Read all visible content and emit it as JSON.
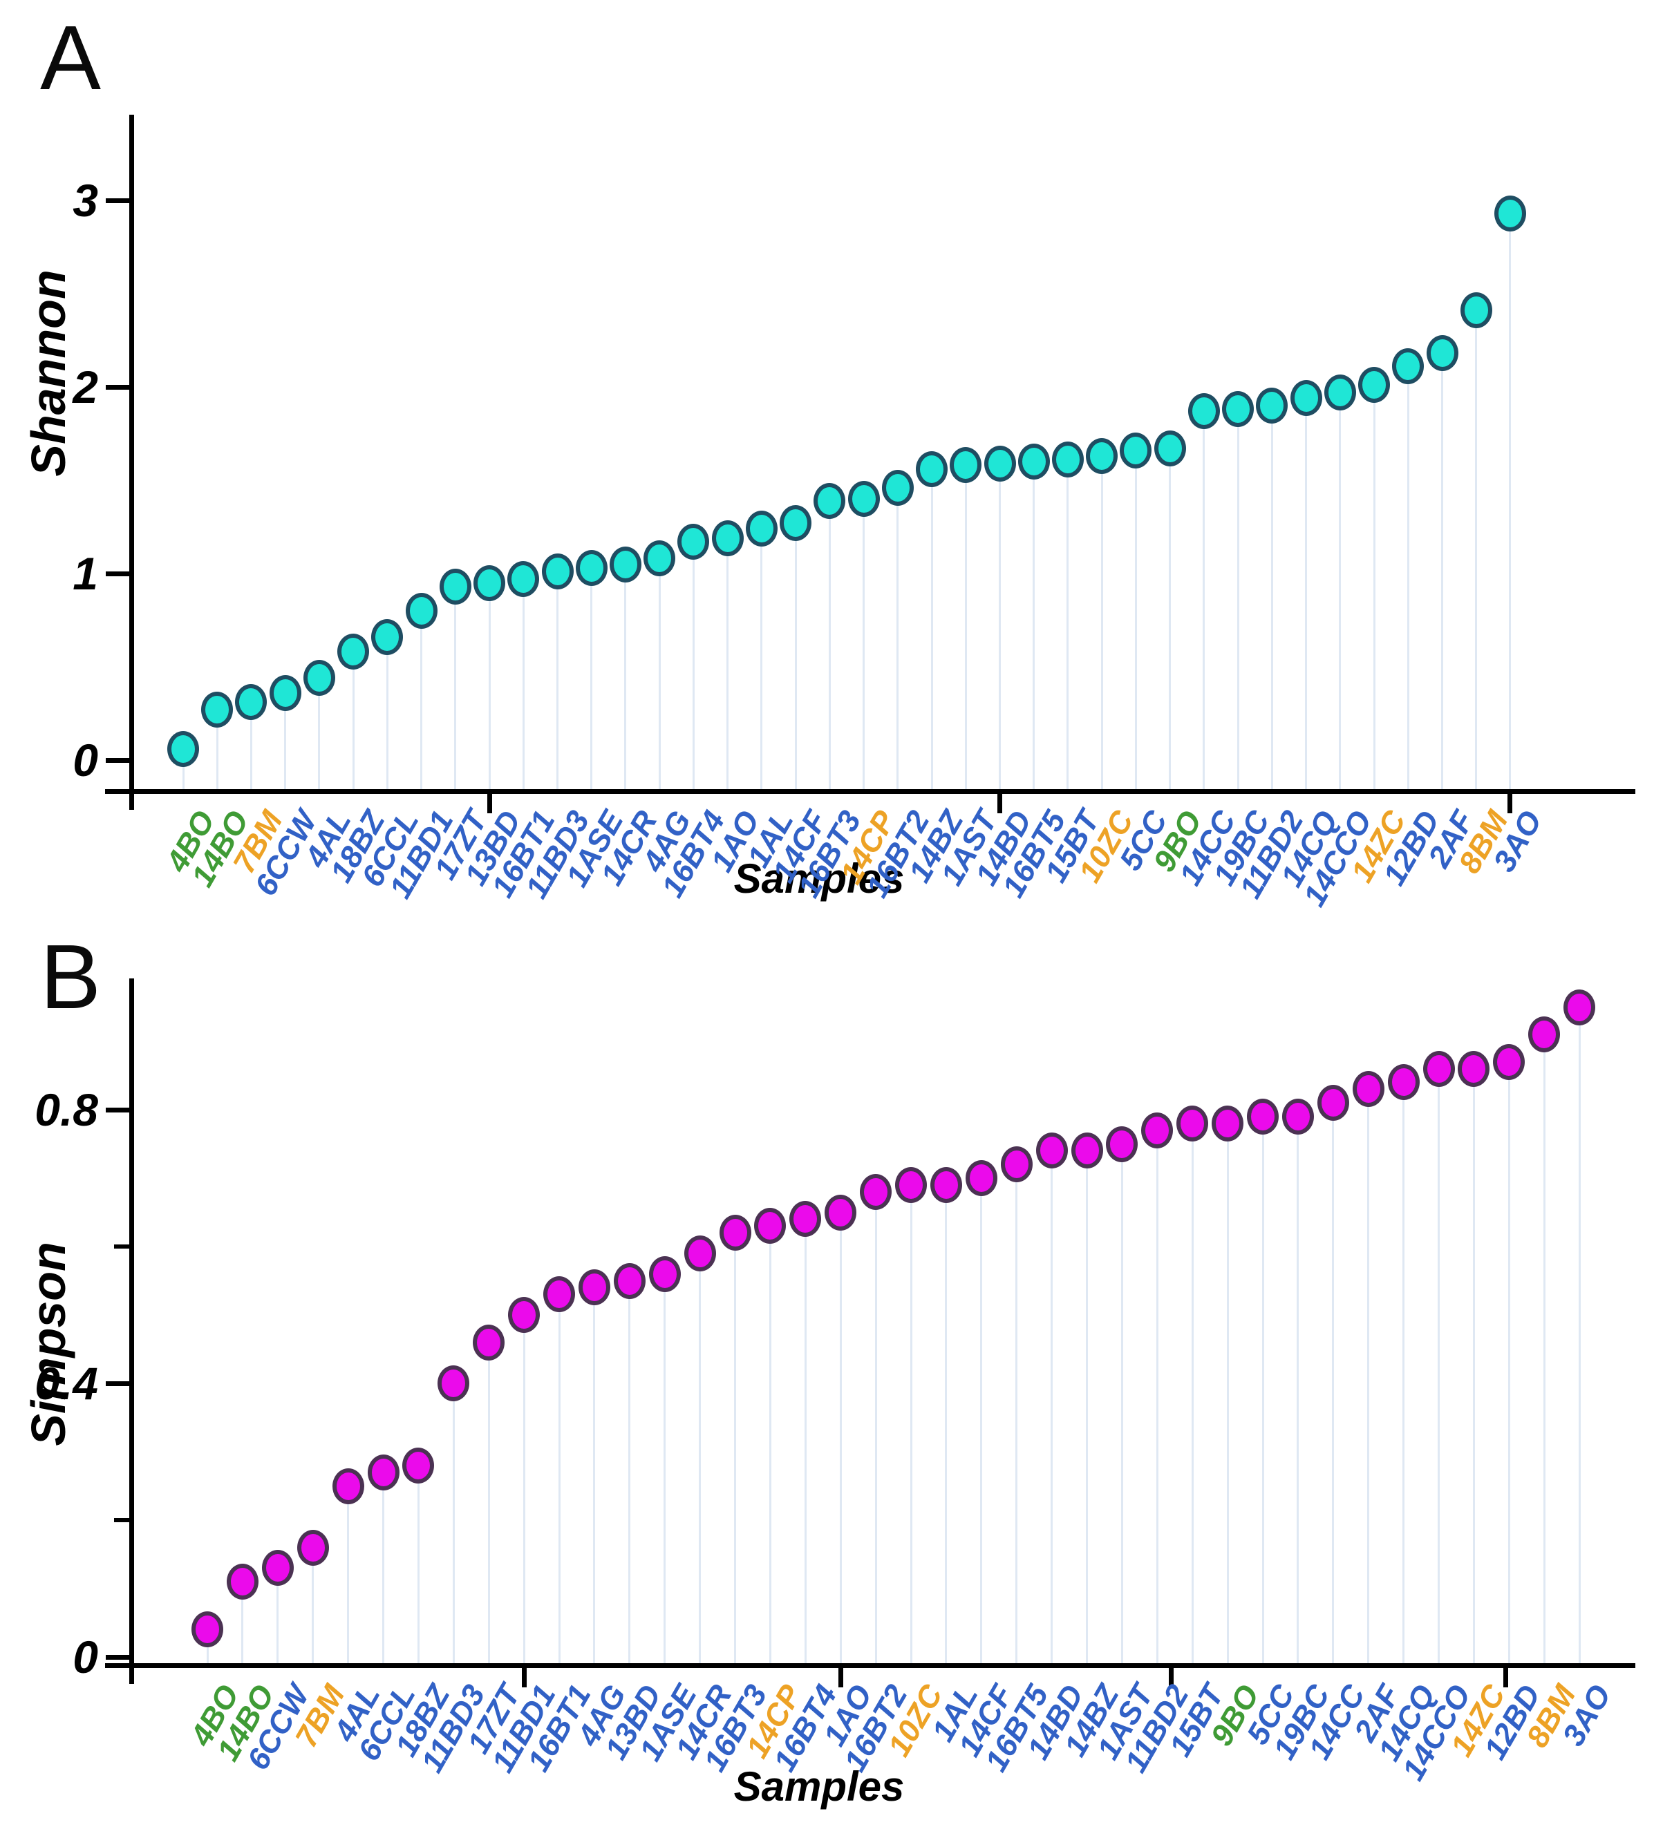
{
  "palette": {
    "label_blue": "#3161c6",
    "label_green": "#3f9b35",
    "label_orange": "#eda225",
    "axis_color": "#000000",
    "dropline_color": "#dfe8f3",
    "shannon_marker_fill": "#1fe6d6",
    "shannon_marker_stroke": "#1f4d62",
    "simpson_marker_fill": "#eb0aeb",
    "simpson_marker_stroke": "#4b3253"
  },
  "chart_data": [
    {
      "id": "shannon-panel",
      "panel_letter": "A",
      "type": "scatter",
      "title": "",
      "xlabel": "Samples",
      "ylabel": "Shannon",
      "ylim": [
        0,
        3.45
      ],
      "yticks": [
        0,
        1,
        2,
        3
      ],
      "ytick_labels": [
        "0",
        "1",
        "2",
        "3"
      ],
      "minor_yticks": [],
      "grid": "droplines-only",
      "legend_position": "none",
      "marker": {
        "fill": "#1fe6d6",
        "stroke": "#1f4d62"
      },
      "categories": [
        "4BO",
        "14BO",
        "7BM",
        "6CCW",
        "4AL",
        "18BZ",
        "6CCL",
        "11BD1",
        "17ZT",
        "13BD",
        "16BT1",
        "11BD3",
        "1ASE",
        "14CR",
        "4AG",
        "16BT4",
        "1AO",
        "1AL",
        "14CF",
        "16BT3",
        "14CP",
        "16BT2",
        "14BZ",
        "1AST",
        "14BD",
        "16BT5",
        "15BT",
        "10ZC",
        "5CC",
        "9BO",
        "14CC",
        "19BC",
        "11BD2",
        "14CQ",
        "14CCO",
        "14ZC",
        "12BD",
        "2AF",
        "8BM",
        "3AO"
      ],
      "values": [
        0.06,
        0.27,
        0.31,
        0.36,
        0.44,
        0.58,
        0.66,
        0.8,
        0.93,
        0.95,
        0.97,
        1.01,
        1.03,
        1.05,
        1.08,
        1.17,
        1.19,
        1.24,
        1.27,
        1.39,
        1.4,
        1.46,
        1.56,
        1.58,
        1.59,
        1.6,
        1.61,
        1.63,
        1.66,
        1.67,
        1.87,
        1.88,
        1.9,
        1.94,
        1.97,
        2.01,
        2.11,
        2.18,
        2.41,
        2.93
      ],
      "label_colors": [
        "green",
        "green",
        "orange",
        "blue",
        "blue",
        "blue",
        "blue",
        "blue",
        "blue",
        "blue",
        "blue",
        "blue",
        "blue",
        "blue",
        "blue",
        "blue",
        "blue",
        "blue",
        "blue",
        "blue",
        "orange",
        "blue",
        "blue",
        "blue",
        "blue",
        "blue",
        "blue",
        "orange",
        "blue",
        "green",
        "blue",
        "blue",
        "blue",
        "blue",
        "blue",
        "orange",
        "blue",
        "blue",
        "orange",
        "blue"
      ]
    },
    {
      "id": "simpson-panel",
      "panel_letter": "B",
      "type": "scatter",
      "title": "",
      "xlabel": "Samples",
      "ylabel": "Simpson",
      "ylim": [
        0,
        0.99
      ],
      "yticks": [
        0,
        0.4,
        0.8
      ],
      "ytick_labels": [
        "0",
        "0.4",
        "0.8"
      ],
      "minor_yticks": [
        0.2,
        0.6
      ],
      "grid": "droplines-only",
      "legend_position": "none",
      "marker": {
        "fill": "#eb0aeb",
        "stroke": "#4b3253"
      },
      "categories": [
        "4BO",
        "14BO",
        "6CCW",
        "7BM",
        "4AL",
        "6CCL",
        "18BZ",
        "11BD3",
        "17ZT",
        "11BD1",
        "16BT1",
        "4AG",
        "13BD",
        "1ASE",
        "14CR",
        "16BT3",
        "14CP",
        "16BT4",
        "1AO",
        "16BT2",
        "10ZC",
        "1AL",
        "14CF",
        "16BT5",
        "14BD",
        "14BZ",
        "1AST",
        "11BD2",
        "15BT",
        "9BO",
        "5CC",
        "19BC",
        "14CC",
        "2AF",
        "14CQ",
        "14CCO",
        "14ZC",
        "12BD",
        "8BM",
        "3AO"
      ],
      "values": [
        0.04,
        0.11,
        0.13,
        0.16,
        0.25,
        0.27,
        0.28,
        0.4,
        0.46,
        0.5,
        0.53,
        0.54,
        0.55,
        0.56,
        0.59,
        0.62,
        0.63,
        0.64,
        0.65,
        0.68,
        0.69,
        0.69,
        0.7,
        0.72,
        0.74,
        0.74,
        0.75,
        0.77,
        0.78,
        0.78,
        0.79,
        0.79,
        0.81,
        0.83,
        0.84,
        0.86,
        0.86,
        0.87,
        0.91,
        0.95
      ],
      "label_colors": [
        "green",
        "green",
        "blue",
        "orange",
        "blue",
        "blue",
        "blue",
        "blue",
        "blue",
        "blue",
        "blue",
        "blue",
        "blue",
        "blue",
        "blue",
        "blue",
        "orange",
        "blue",
        "blue",
        "blue",
        "orange",
        "blue",
        "blue",
        "blue",
        "blue",
        "blue",
        "blue",
        "blue",
        "blue",
        "green",
        "blue",
        "blue",
        "blue",
        "blue",
        "blue",
        "blue",
        "orange",
        "blue",
        "orange",
        "blue"
      ]
    }
  ]
}
